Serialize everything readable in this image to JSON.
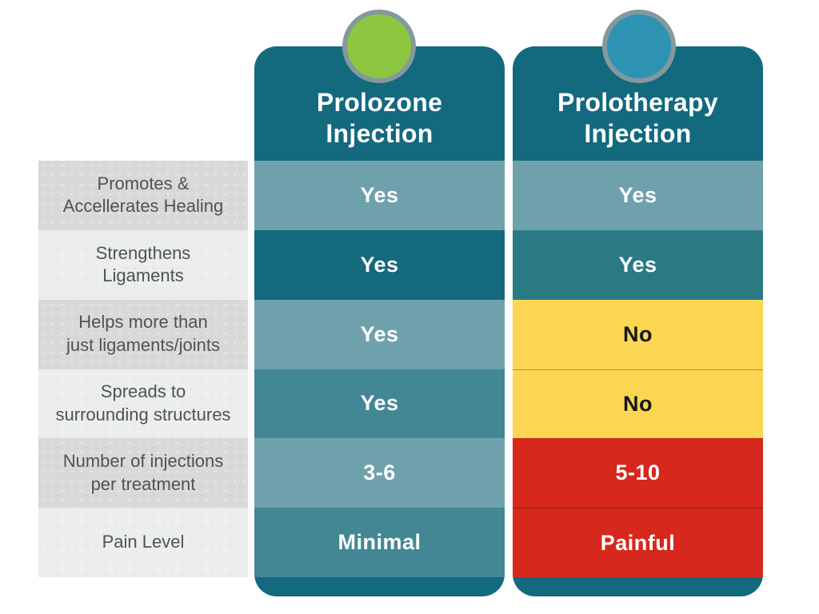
{
  "colors": {
    "header_teal": "#13697e",
    "footer_teal": "#13697e",
    "light_teal": "#6fa1ac",
    "dark_teal": "#15697d",
    "mid_teal": "#438794",
    "teal_alt": "#2a7a84",
    "warning_yellow": "#fad652",
    "alert_red": "#d7281d",
    "circle_green": "#8dc63f",
    "circle_blue": "#2e93b3",
    "circle_ring": "#85989e",
    "label_text": "#4d5452"
  },
  "table": {
    "columns": [
      {
        "title": "Prolozone\nInjection",
        "circle_color": "#8dc63f"
      },
      {
        "title": "Prolotherapy\nInjection",
        "circle_color": "#2e93b3"
      }
    ],
    "rows": [
      {
        "label": "Promotes &\nAccellerates Healing",
        "label_bg": "#d9d9da",
        "cells": [
          {
            "value": "Yes",
            "bg": "#6fa1ac",
            "fg": "#ffffff"
          },
          {
            "value": "Yes",
            "bg": "#6fa1ac",
            "fg": "#ffffff"
          }
        ]
      },
      {
        "label": "Strengthens\nLigaments",
        "label_bg": "#ecedee",
        "cells": [
          {
            "value": "Yes",
            "bg": "#15697d",
            "fg": "#ffffff"
          },
          {
            "value": "Yes",
            "bg": "#2a7a84",
            "fg": "#ffffff"
          }
        ]
      },
      {
        "label": "Helps more than\njust ligaments/joints",
        "label_bg": "#d9d9da",
        "cells": [
          {
            "value": "Yes",
            "bg": "#6fa1ac",
            "fg": "#ffffff"
          },
          {
            "value": "No",
            "bg": "#fad652",
            "fg": "#171717"
          }
        ]
      },
      {
        "label": "Spreads to\nsurrounding structures",
        "label_bg": "#ecedee",
        "cells": [
          {
            "value": "Yes",
            "bg": "#438794",
            "fg": "#ffffff"
          },
          {
            "value": "No",
            "bg": "#fad652",
            "fg": "#171717"
          }
        ]
      },
      {
        "label": "Number of injections\nper treatment",
        "label_bg": "#d9d9da",
        "cells": [
          {
            "value": "3-6",
            "bg": "#6fa1ac",
            "fg": "#ffffff"
          },
          {
            "value": "5-10",
            "bg": "#d7281d",
            "fg": "#ffffff"
          }
        ]
      },
      {
        "label": "Pain Level",
        "label_bg": "#ecedee",
        "cells": [
          {
            "value": "Minimal",
            "bg": "#438794",
            "fg": "#ffffff"
          },
          {
            "value": "Painful",
            "bg": "#d7281d",
            "fg": "#ffffff"
          }
        ]
      }
    ]
  }
}
